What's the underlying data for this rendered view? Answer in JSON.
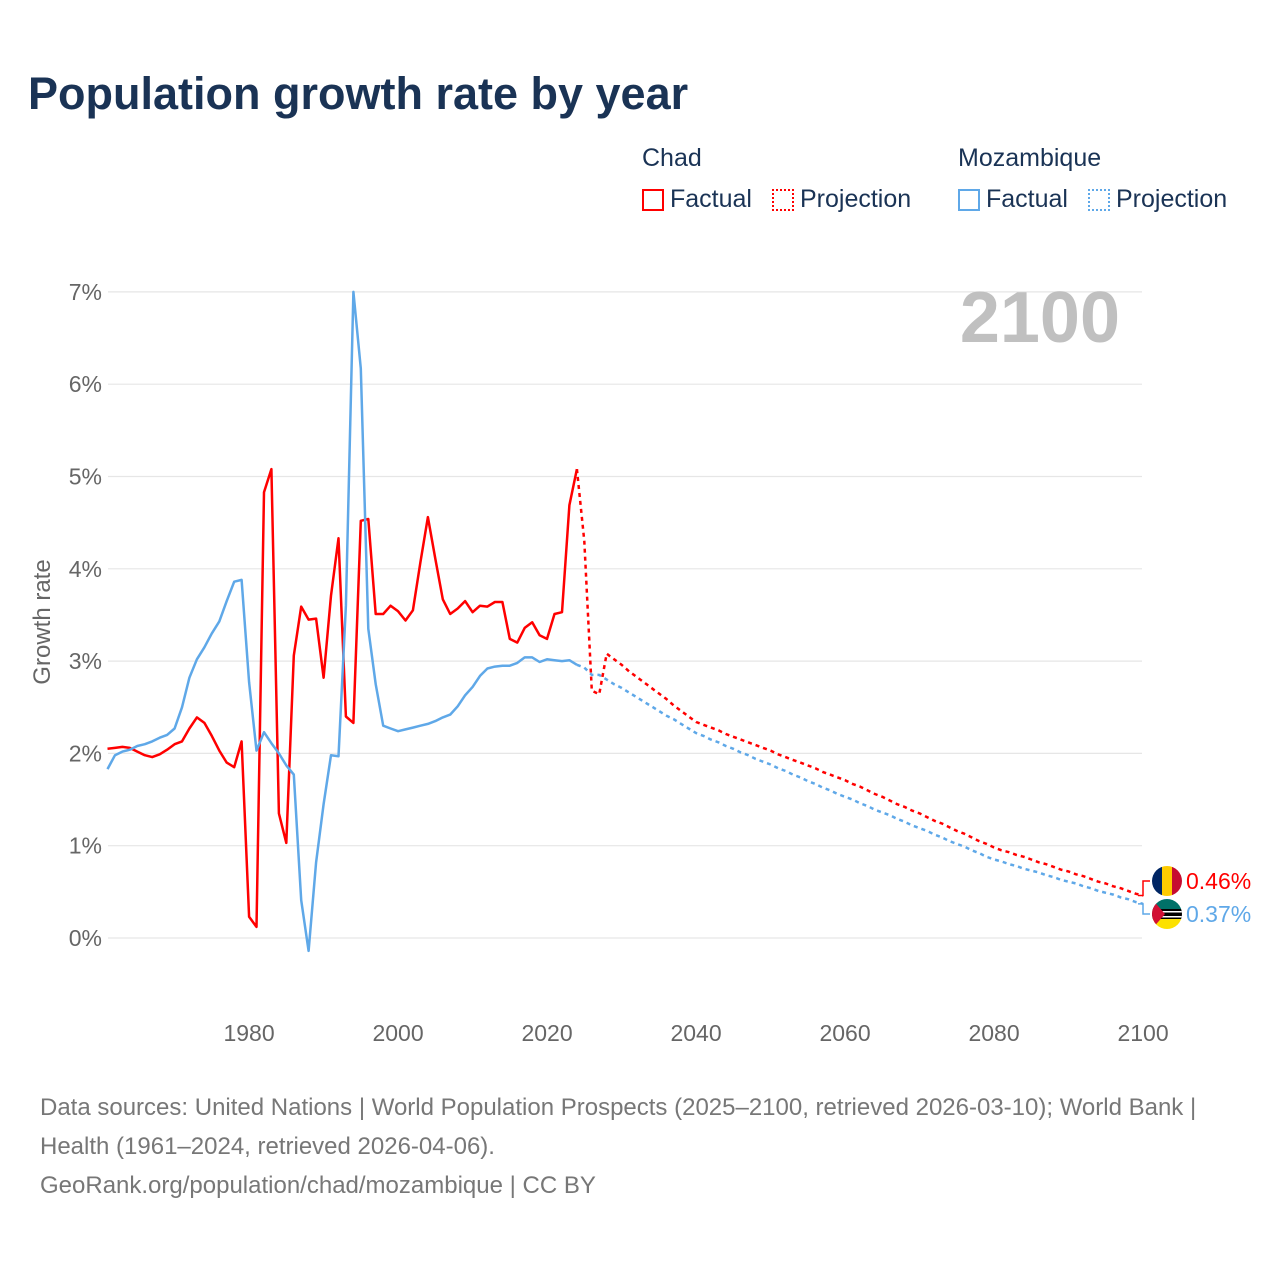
{
  "title": "Population growth rate by year",
  "legend": {
    "groups": [
      {
        "name": "Chad",
        "factual": "Factual",
        "projection": "Projection",
        "color": "#ff0000"
      },
      {
        "name": "Mozambique",
        "factual": "Factual",
        "projection": "Projection",
        "color": "#5fa8e8"
      }
    ]
  },
  "year_watermark": "2100",
  "footer": {
    "sources": "Data sources: United Nations | World Population Prospects (2025–2100, retrieved 2026-03-10); World Bank | Health (1961–2024, retrieved 2026-04-06).",
    "credit": "GeoRank.org/population/chad/mozambique | CC BY"
  },
  "chart_data": {
    "type": "line",
    "title": "Population growth rate by year",
    "xlabel": "",
    "ylabel": "Growth rate",
    "xlim": [
      1961,
      2100
    ],
    "ylim": [
      -0.7,
      7.5
    ],
    "x_ticks": [
      1980,
      2000,
      2020,
      2040,
      2060,
      2080,
      2100
    ],
    "x_tick_labels": [
      "1980",
      "2000",
      "2020",
      "2040",
      "2060",
      "2080",
      "2100"
    ],
    "y_ticks": [
      0,
      1,
      2,
      3,
      4,
      5,
      6,
      7
    ],
    "y_tick_labels": [
      "0%",
      "1%",
      "2%",
      "3%",
      "4%",
      "5%",
      "6%",
      "7%"
    ],
    "grid": true,
    "legend_position": "top-right",
    "series": [
      {
        "name": "Chad",
        "kind": "Factual",
        "color": "#ff0000",
        "dashed": false,
        "start_year": 1961,
        "values": [
          2.05,
          2.06,
          2.07,
          2.06,
          2.02,
          1.98,
          1.96,
          1.99,
          2.04,
          2.1,
          2.13,
          2.27,
          2.39,
          2.33,
          2.19,
          2.03,
          1.9,
          1.85,
          2.13,
          0.23,
          0.12,
          4.83,
          5.08,
          1.35,
          1.03,
          3.06,
          3.59,
          3.45,
          3.46,
          2.82,
          3.71,
          4.33,
          2.4,
          2.33,
          4.52,
          4.54,
          3.51,
          3.51,
          3.6,
          3.54,
          3.44,
          3.55,
          4.07,
          4.56,
          4.11,
          3.67,
          3.51,
          3.57,
          3.65,
          3.53,
          3.6,
          3.59,
          3.64,
          3.64,
          3.24,
          3.2,
          3.36,
          3.42,
          3.28,
          3.24,
          3.51,
          3.53,
          4.69,
          5.08
        ]
      },
      {
        "name": "Chad",
        "kind": "Projection",
        "color": "#ff0000",
        "dashed": true,
        "start_year": 2024,
        "values": [
          5.08,
          4.3,
          2.68,
          2.64,
          3.08,
          3.02,
          2.96,
          2.89,
          2.83,
          2.77,
          2.71,
          2.65,
          2.59,
          2.52,
          2.46,
          2.4,
          2.34,
          2.31,
          2.28,
          2.25,
          2.21,
          2.18,
          2.15,
          2.12,
          2.09,
          2.06,
          2.03,
          1.99,
          1.96,
          1.93,
          1.9,
          1.87,
          1.84,
          1.8,
          1.77,
          1.74,
          1.71,
          1.67,
          1.64,
          1.6,
          1.56,
          1.53,
          1.49,
          1.45,
          1.42,
          1.38,
          1.35,
          1.31,
          1.27,
          1.24,
          1.2,
          1.16,
          1.13,
          1.09,
          1.05,
          1.02,
          0.98,
          0.95,
          0.93,
          0.9,
          0.88,
          0.85,
          0.82,
          0.8,
          0.77,
          0.74,
          0.72,
          0.69,
          0.67,
          0.64,
          0.61,
          0.59,
          0.56,
          0.54,
          0.51,
          0.48,
          0.46
        ]
      },
      {
        "name": "Mozambique",
        "kind": "Factual",
        "color": "#5fa8e8",
        "dashed": false,
        "start_year": 1961,
        "values": [
          1.83,
          1.98,
          2.02,
          2.04,
          2.08,
          2.1,
          2.13,
          2.17,
          2.2,
          2.27,
          2.5,
          2.82,
          3.02,
          3.15,
          3.3,
          3.43,
          3.65,
          3.86,
          3.88,
          2.77,
          2.03,
          2.23,
          2.11,
          2.0,
          1.87,
          1.77,
          0.41,
          -0.14,
          0.82,
          1.45,
          1.98,
          1.97,
          3.6,
          7.0,
          6.17,
          3.35,
          2.75,
          2.3,
          2.27,
          2.24,
          2.26,
          2.28,
          2.3,
          2.32,
          2.35,
          2.39,
          2.42,
          2.51,
          2.63,
          2.72,
          2.84,
          2.92,
          2.94,
          2.95,
          2.95,
          2.98,
          3.04,
          3.04,
          2.99,
          3.02,
          3.01,
          3.0,
          3.01,
          2.96
        ]
      },
      {
        "name": "Mozambique",
        "kind": "Projection",
        "color": "#5fa8e8",
        "dashed": true,
        "start_year": 2024,
        "values": [
          2.96,
          2.93,
          2.85,
          2.85,
          2.8,
          2.75,
          2.71,
          2.66,
          2.61,
          2.56,
          2.51,
          2.46,
          2.41,
          2.37,
          2.32,
          2.27,
          2.22,
          2.19,
          2.15,
          2.12,
          2.08,
          2.05,
          2.01,
          1.98,
          1.94,
          1.91,
          1.88,
          1.84,
          1.81,
          1.77,
          1.74,
          1.7,
          1.67,
          1.63,
          1.6,
          1.56,
          1.53,
          1.5,
          1.46,
          1.43,
          1.39,
          1.36,
          1.33,
          1.29,
          1.26,
          1.22,
          1.19,
          1.16,
          1.12,
          1.09,
          1.05,
          1.02,
          0.99,
          0.95,
          0.92,
          0.88,
          0.85,
          0.83,
          0.8,
          0.78,
          0.75,
          0.73,
          0.71,
          0.68,
          0.66,
          0.63,
          0.61,
          0.59,
          0.56,
          0.54,
          0.51,
          0.49,
          0.47,
          0.44,
          0.42,
          0.39,
          0.37
        ]
      }
    ],
    "end_labels": [
      {
        "name": "Chad",
        "text": "0.46%",
        "color": "#ff0000"
      },
      {
        "name": "Mozambique",
        "text": "0.37%",
        "color": "#5fa8e8"
      }
    ]
  }
}
